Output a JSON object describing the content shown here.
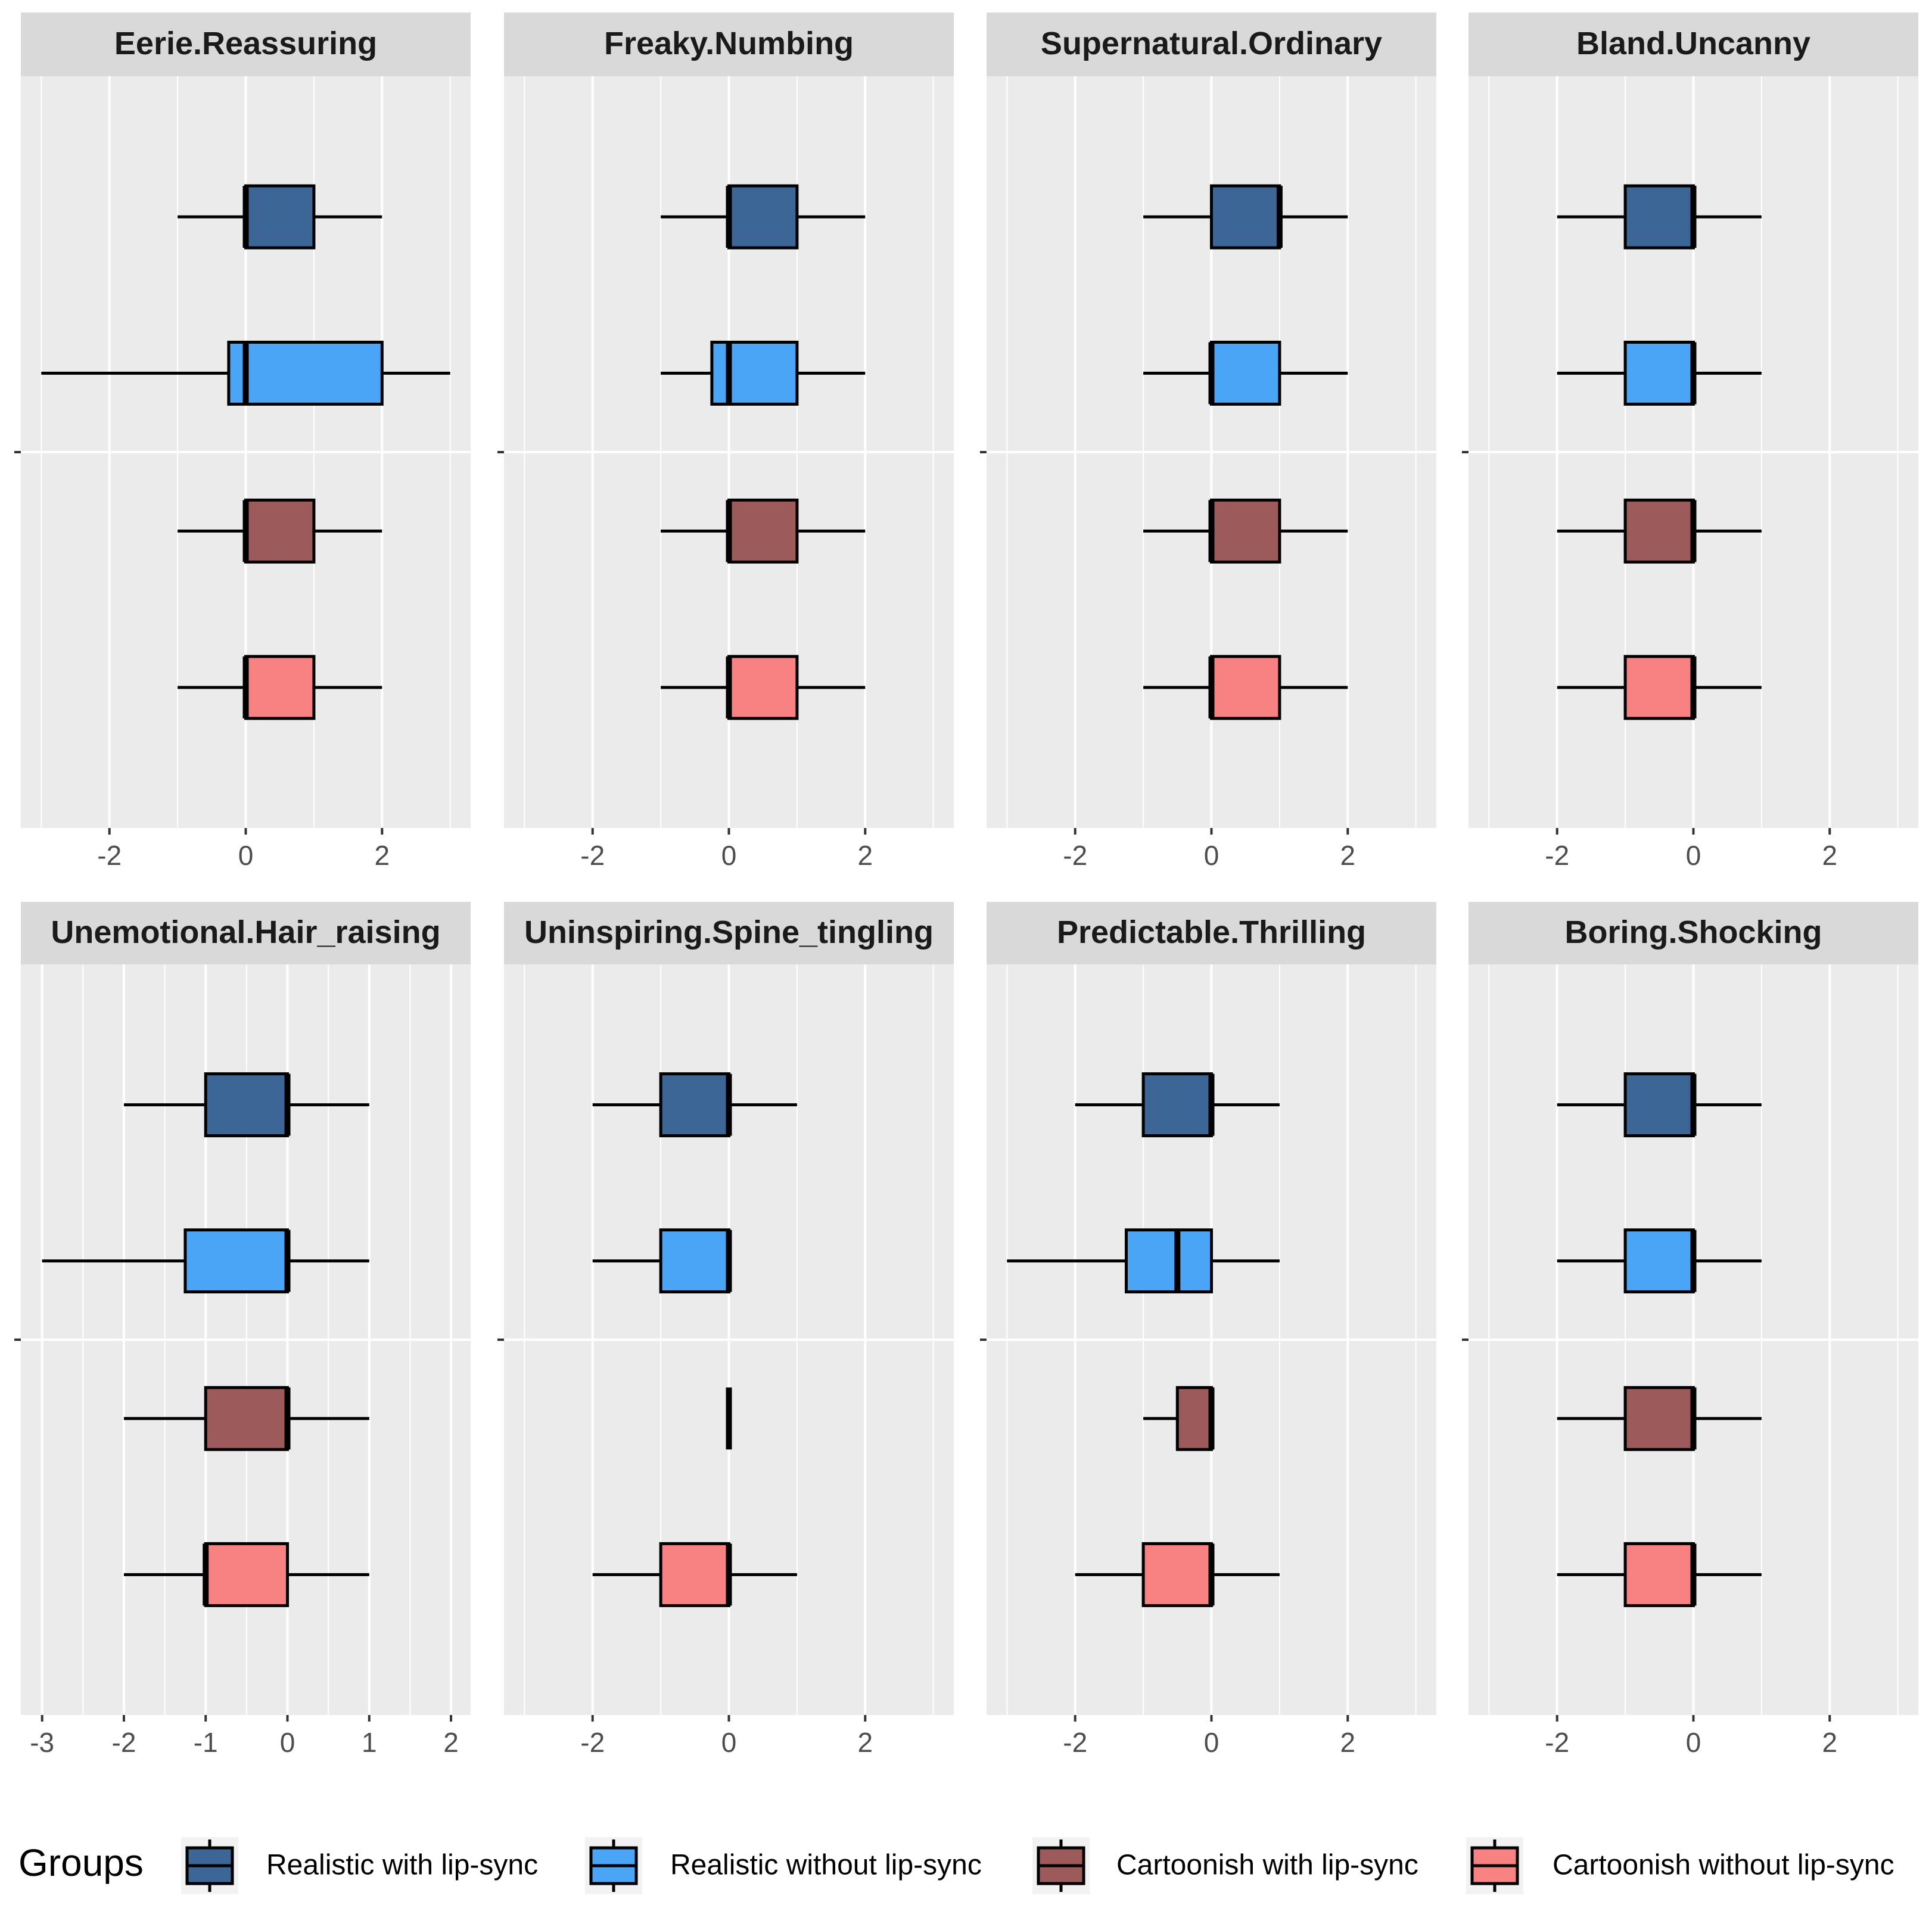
{
  "legend": {
    "title": "Groups"
  },
  "chart_data": [
    {
      "type": "boxplot",
      "title": "Eerie.Reassuring",
      "xlim": [
        -3.3,
        3.3
      ],
      "xticks": [
        -2,
        0,
        2
      ],
      "grid": true,
      "minor_grid": true,
      "series": [
        {
          "name": "Realistic with lip-sync",
          "color": "#3b6696",
          "min": -1,
          "q1": 0,
          "median": 0,
          "q3": 1,
          "max": 2
        },
        {
          "name": "Realistic without lip-sync",
          "color": "#4aa5f7",
          "min": -3,
          "q1": -0.25,
          "median": 0,
          "q3": 2,
          "max": 3
        },
        {
          "name": "Cartoonish with lip-sync",
          "color": "#9c5a5a",
          "min": -1,
          "q1": 0,
          "median": 0,
          "q3": 1,
          "max": 2
        },
        {
          "name": "Cartoonish without lip-sync",
          "color": "#f88282",
          "min": -1,
          "q1": 0,
          "median": 0,
          "q3": 1,
          "max": 2
        }
      ]
    },
    {
      "type": "boxplot",
      "title": "Freaky.Numbing",
      "xlim": [
        -3.3,
        3.3
      ],
      "xticks": [
        -2,
        0,
        2
      ],
      "grid": true,
      "minor_grid": true,
      "series": [
        {
          "name": "Realistic with lip-sync",
          "color": "#3b6696",
          "min": -1,
          "q1": 0,
          "median": 0,
          "q3": 1,
          "max": 2
        },
        {
          "name": "Realistic without lip-sync",
          "color": "#4aa5f7",
          "min": -1,
          "q1": -0.25,
          "median": 0,
          "q3": 1,
          "max": 2
        },
        {
          "name": "Cartoonish with lip-sync",
          "color": "#9c5a5a",
          "min": -1,
          "q1": 0,
          "median": 0,
          "q3": 1,
          "max": 2
        },
        {
          "name": "Cartoonish without lip-sync",
          "color": "#f88282",
          "min": -1,
          "q1": 0,
          "median": 0,
          "q3": 1,
          "max": 2
        }
      ]
    },
    {
      "type": "boxplot",
      "title": "Supernatural.Ordinary",
      "xlim": [
        -3.3,
        3.3
      ],
      "xticks": [
        -2,
        0,
        2
      ],
      "grid": true,
      "minor_grid": true,
      "series": [
        {
          "name": "Realistic with lip-sync",
          "color": "#3b6696",
          "min": -1,
          "q1": 0,
          "median": 1,
          "q3": 1,
          "max": 2
        },
        {
          "name": "Realistic without lip-sync",
          "color": "#4aa5f7",
          "min": -1,
          "q1": 0,
          "median": 0,
          "q3": 1,
          "max": 2
        },
        {
          "name": "Cartoonish with lip-sync",
          "color": "#9c5a5a",
          "min": -1,
          "q1": 0,
          "median": 0,
          "q3": 1,
          "max": 2
        },
        {
          "name": "Cartoonish without lip-sync",
          "color": "#f88282",
          "min": -1,
          "q1": 0,
          "median": 0,
          "q3": 1,
          "max": 2
        }
      ]
    },
    {
      "type": "boxplot",
      "title": "Bland.Uncanny",
      "xlim": [
        -3.3,
        3.3
      ],
      "xticks": [
        -2,
        0,
        2
      ],
      "grid": true,
      "minor_grid": true,
      "series": [
        {
          "name": "Realistic with lip-sync",
          "color": "#3b6696",
          "min": -2,
          "q1": -1,
          "median": 0,
          "q3": 0,
          "max": 1
        },
        {
          "name": "Realistic without lip-sync",
          "color": "#4aa5f7",
          "min": -2,
          "q1": -1,
          "median": 0,
          "q3": 0,
          "max": 1
        },
        {
          "name": "Cartoonish with lip-sync",
          "color": "#9c5a5a",
          "min": -2,
          "q1": -1,
          "median": 0,
          "q3": 0,
          "max": 1
        },
        {
          "name": "Cartoonish without lip-sync",
          "color": "#f88282",
          "min": -2,
          "q1": -1,
          "median": 0,
          "q3": 0,
          "max": 1
        }
      ]
    },
    {
      "type": "boxplot",
      "title": "Unemotional.Hair_raising",
      "xlim": [
        -3.26,
        2.24
      ],
      "xticks": [
        -3,
        -2,
        -1,
        0,
        1,
        2
      ],
      "grid": true,
      "minor_grid": true,
      "series": [
        {
          "name": "Realistic with lip-sync",
          "color": "#3b6696",
          "min": -2,
          "q1": -1,
          "median": 0,
          "q3": 0,
          "max": 1
        },
        {
          "name": "Realistic without lip-sync",
          "color": "#4aa5f7",
          "min": -3,
          "q1": -1.25,
          "median": 0,
          "q3": 0,
          "max": 1
        },
        {
          "name": "Cartoonish with lip-sync",
          "color": "#9c5a5a",
          "min": -2,
          "q1": -1,
          "median": 0,
          "q3": 0,
          "max": 1
        },
        {
          "name": "Cartoonish without lip-sync",
          "color": "#f88282",
          "min": -2,
          "q1": -1,
          "median": -1,
          "q3": 0,
          "max": 1
        }
      ]
    },
    {
      "type": "boxplot",
      "title": "Uninspiring.Spine_tingling",
      "xlim": [
        -3.3,
        3.3
      ],
      "xticks": [
        -2,
        0,
        2
      ],
      "grid": true,
      "minor_grid": true,
      "series": [
        {
          "name": "Realistic with lip-sync",
          "color": "#3b6696",
          "min": -2,
          "q1": -1,
          "median": 0,
          "q3": 0,
          "max": 1
        },
        {
          "name": "Realistic without lip-sync",
          "color": "#4aa5f7",
          "min": -2,
          "q1": -1,
          "median": 0,
          "q3": 0,
          "max": 0
        },
        {
          "name": "Cartoonish with lip-sync",
          "color": "#9c5a5a",
          "min": 0,
          "q1": 0,
          "median": 0,
          "q3": 0,
          "max": 0
        },
        {
          "name": "Cartoonish without lip-sync",
          "color": "#f88282",
          "min": -2,
          "q1": -1,
          "median": 0,
          "q3": 0,
          "max": 1
        }
      ]
    },
    {
      "type": "boxplot",
      "title": "Predictable.Thrilling",
      "xlim": [
        -3.3,
        3.3
      ],
      "xticks": [
        -2,
        0,
        2
      ],
      "grid": true,
      "minor_grid": true,
      "series": [
        {
          "name": "Realistic with lip-sync",
          "color": "#3b6696",
          "min": -2,
          "q1": -1,
          "median": 0,
          "q3": 0,
          "max": 1
        },
        {
          "name": "Realistic without lip-sync",
          "color": "#4aa5f7",
          "min": -3,
          "q1": -1.25,
          "median": -0.5,
          "q3": 0,
          "max": 1
        },
        {
          "name": "Cartoonish with lip-sync",
          "color": "#9c5a5a",
          "min": -1,
          "q1": -0.5,
          "median": 0,
          "q3": 0,
          "max": 0
        },
        {
          "name": "Cartoonish without lip-sync",
          "color": "#f88282",
          "min": -2,
          "q1": -1,
          "median": 0,
          "q3": 0,
          "max": 1
        }
      ]
    },
    {
      "type": "boxplot",
      "title": "Boring.Shocking",
      "xlim": [
        -3.3,
        3.3
      ],
      "xticks": [
        -2,
        0,
        2
      ],
      "grid": true,
      "minor_grid": true,
      "series": [
        {
          "name": "Realistic with lip-sync",
          "color": "#3b6696",
          "min": -2,
          "q1": -1,
          "median": 0,
          "q3": 0,
          "max": 1
        },
        {
          "name": "Realistic without lip-sync",
          "color": "#4aa5f7",
          "min": -2,
          "q1": -1,
          "median": 0,
          "q3": 0,
          "max": 1
        },
        {
          "name": "Cartoonish with lip-sync",
          "color": "#9c5a5a",
          "min": -2,
          "q1": -1,
          "median": 0,
          "q3": 0,
          "max": 1
        },
        {
          "name": "Cartoonish without lip-sync",
          "color": "#f88282",
          "min": -2,
          "q1": -1,
          "median": 0,
          "q3": 0,
          "max": 1
        }
      ]
    }
  ]
}
